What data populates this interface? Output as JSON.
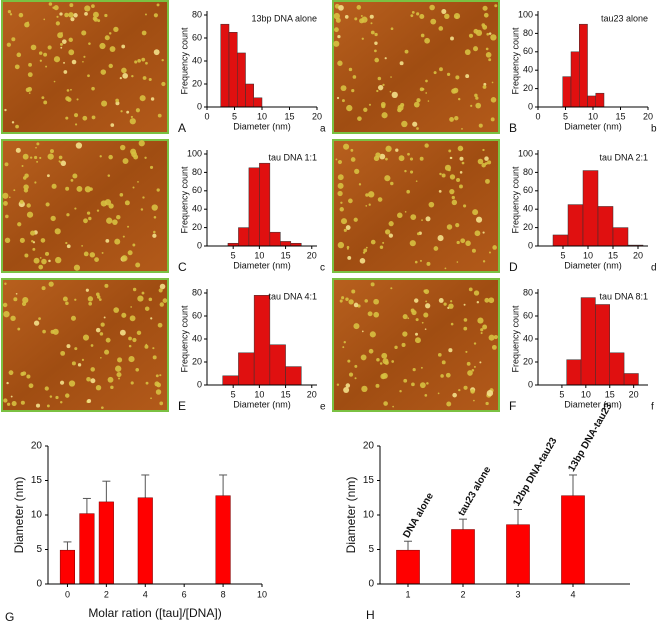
{
  "chart_data": [
    {
      "type": "histogram",
      "panel": "A",
      "subpanel": "a",
      "title": "13bp DNA alone",
      "xlabel": "Diameter (nm)",
      "ylabel": "Frequency count",
      "bins": [
        2.5,
        4,
        5.5,
        7,
        8.5,
        10
      ],
      "values": [
        72,
        65,
        47,
        20,
        8
      ],
      "xlim": [
        0,
        20
      ],
      "xticks": [
        0,
        5,
        10,
        15,
        20
      ],
      "ylim": [
        0,
        80
      ],
      "yticks": [
        0,
        20,
        40,
        60,
        80
      ],
      "color": "#e01010"
    },
    {
      "type": "histogram",
      "panel": "B",
      "subpanel": "b",
      "title": "tau23 alone",
      "xlabel": "Diameter (nm)",
      "ylabel": "Frequency count",
      "bins": [
        4.5,
        6,
        7.5,
        9,
        10.5,
        12
      ],
      "values": [
        33,
        60,
        90,
        12,
        15
      ],
      "xlim": [
        0,
        20
      ],
      "xticks": [
        0,
        5,
        10,
        15,
        20
      ],
      "ylim": [
        0,
        100
      ],
      "yticks": [
        0,
        20,
        40,
        60,
        80,
        100
      ],
      "color": "#e01010"
    },
    {
      "type": "histogram",
      "panel": "C",
      "subpanel": "c",
      "title": "tau DNA 1:1",
      "xlabel": "Diameter (nm)",
      "ylabel": "Frequency count",
      "bins": [
        4,
        6,
        8,
        10,
        12,
        14,
        16,
        18
      ],
      "values": [
        3,
        20,
        85,
        90,
        15,
        5,
        3
      ],
      "xlim": [
        0,
        21
      ],
      "xticks": [
        5,
        10,
        15,
        20
      ],
      "ylim": [
        0,
        100
      ],
      "yticks": [
        0,
        20,
        40,
        60,
        80,
        100
      ],
      "color": "#e01010"
    },
    {
      "type": "histogram",
      "panel": "D",
      "subpanel": "d",
      "title": "tau DNA 2:1",
      "xlabel": "Diameter (nm)",
      "ylabel": "Frequency count",
      "bins": [
        3,
        6,
        9,
        12,
        15,
        18,
        21
      ],
      "values": [
        12,
        45,
        82,
        43,
        20,
        1
      ],
      "xlim": [
        0,
        22
      ],
      "xticks": [
        5,
        10,
        15,
        20
      ],
      "ylim": [
        0,
        100
      ],
      "yticks": [
        0,
        20,
        40,
        60,
        80,
        100
      ],
      "color": "#e01010"
    },
    {
      "type": "histogram",
      "panel": "E",
      "subpanel": "e",
      "title": "tau DNA 4:1",
      "xlabel": "Diameter (nm)",
      "ylabel": "Frequency count",
      "bins": [
        3,
        6,
        9,
        12,
        15,
        18
      ],
      "values": [
        8,
        28,
        78,
        35,
        16
      ],
      "xlim": [
        0,
        21
      ],
      "xticks": [
        5,
        10,
        15,
        20
      ],
      "ylim": [
        0,
        80
      ],
      "yticks": [
        0,
        20,
        40,
        60,
        80
      ],
      "color": "#e01010"
    },
    {
      "type": "histogram",
      "panel": "F",
      "subpanel": "f",
      "title": "tau DNA 8:1",
      "xlabel": "Diameter (nm)",
      "ylabel": "Frequency count",
      "bins": [
        3,
        6,
        9,
        12,
        15,
        18,
        21
      ],
      "values": [
        0,
        22,
        76,
        70,
        28,
        10
      ],
      "xlim": [
        0,
        23
      ],
      "xticks": [
        5,
        10,
        15,
        20
      ],
      "ylim": [
        0,
        80
      ],
      "yticks": [
        0,
        20,
        40,
        60,
        80
      ],
      "color": "#e01010"
    },
    {
      "type": "bar",
      "panel": "G",
      "xlabel": "Molar ration ([tau]/[DNA])",
      "ylabel": "Diameter (nm)",
      "x": [
        0,
        1,
        2,
        4,
        8
      ],
      "values": [
        4.9,
        10.2,
        11.9,
        12.5,
        12.8
      ],
      "errors": [
        1.2,
        2.2,
        3.0,
        3.3,
        3.0
      ],
      "xlim": [
        -1,
        10
      ],
      "xticks": [
        0,
        2,
        4,
        6,
        8,
        10
      ],
      "ylim": [
        0,
        20
      ],
      "yticks": [
        0,
        5,
        10,
        15,
        20
      ],
      "color": "#ff0000"
    },
    {
      "type": "bar",
      "panel": "H",
      "ylabel": "Diameter (nm)",
      "categories": [
        "1",
        "2",
        "3",
        "4"
      ],
      "bar_labels": [
        "DNA alone",
        "tau23 alone",
        "12bp DNA-tau23",
        "13bp DNA-tau23"
      ],
      "values": [
        4.9,
        7.9,
        8.6,
        12.8
      ],
      "errors": [
        1.3,
        1.5,
        2.2,
        3.0
      ],
      "ylim": [
        0,
        20
      ],
      "yticks": [
        0,
        5,
        10,
        15,
        20
      ],
      "color": "#ff0000"
    }
  ]
}
